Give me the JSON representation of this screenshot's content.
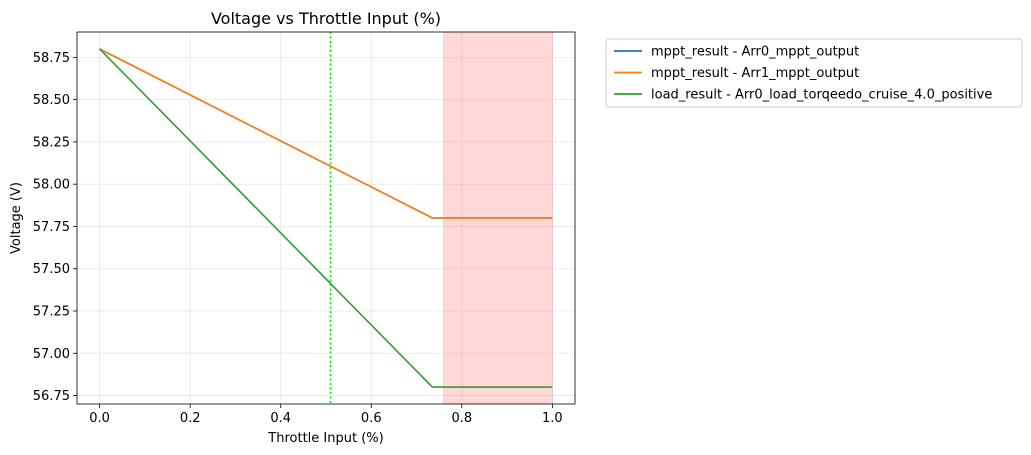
{
  "chart_data": {
    "type": "line",
    "title": "Voltage vs Throttle Input (%)",
    "xlabel": "Throttle Input (%)",
    "ylabel": "Voltage (V)",
    "xlim": [
      -0.05,
      1.05
    ],
    "ylim": [
      56.7,
      58.9
    ],
    "xticks": [
      0.0,
      0.2,
      0.4,
      0.6,
      0.8,
      1.0
    ],
    "xtick_labels": [
      "0.0",
      "0.2",
      "0.4",
      "0.6",
      "0.8",
      "1.0"
    ],
    "yticks": [
      56.75,
      57.0,
      57.25,
      57.5,
      57.75,
      58.0,
      58.25,
      58.5,
      58.75
    ],
    "ytick_labels": [
      "56.75",
      "57.00",
      "57.25",
      "57.50",
      "57.75",
      "58.00",
      "58.25",
      "58.50",
      "58.75"
    ],
    "grid": true,
    "legend_position": "outside-upper-right",
    "series": [
      {
        "name": "mppt_result - Arr0_mppt_output",
        "color": "#1f77b4",
        "x": [
          0.0,
          0.735,
          1.0
        ],
        "y": [
          58.8,
          57.8,
          57.8
        ]
      },
      {
        "name": "mppt_result - Arr1_mppt_output",
        "color": "#ff7f0e",
        "x": [
          0.0,
          0.735,
          1.0
        ],
        "y": [
          58.8,
          57.8,
          57.8
        ]
      },
      {
        "name": "load_result - Arr0_load_torqeedo_cruise_4.0_positive",
        "color": "#2ca02c",
        "x": [
          0.0,
          0.735,
          1.0
        ],
        "y": [
          58.8,
          56.8,
          56.8
        ]
      }
    ],
    "annotations": {
      "vline": {
        "x": 0.51,
        "color": "#00ee00",
        "style": "dotted"
      },
      "shaded_region": {
        "x_start": 0.76,
        "x_end": 1.0,
        "color": "#ffd7d7"
      }
    }
  }
}
